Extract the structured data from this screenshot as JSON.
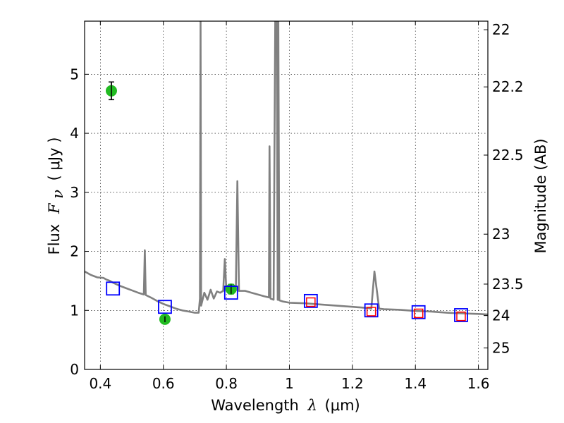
{
  "chart_data": {
    "type": "scatter",
    "xlabel": {
      "text": "Wavelength",
      "symbol": "λ",
      "unit": "(μm)"
    },
    "ylabel": {
      "text": "Flux",
      "symbol": "F",
      "subscript": "ν",
      "unit": "( μJy )"
    },
    "y2label": "Magnitude (AB)",
    "xlim": [
      0.35,
      1.63
    ],
    "ylim": [
      0,
      5.9
    ],
    "x_ticks": [
      0.4,
      0.6,
      0.8,
      1.0,
      1.2,
      1.4,
      1.6
    ],
    "x_tick_labels": [
      "0.4",
      "0.6",
      "0.8",
      "1",
      "1.2",
      "1.4",
      "1.6"
    ],
    "y_ticks": [
      0,
      1,
      2,
      3,
      4,
      5
    ],
    "y_tick_labels": [
      "0",
      "1",
      "2",
      "3",
      "4",
      "5"
    ],
    "y2_ticks": [
      22,
      22.2,
      22.5,
      23,
      23.5,
      24,
      25
    ],
    "y2_tick_labels": [
      "22",
      "22.2",
      "22.5",
      "23",
      "23.5",
      "24",
      "25"
    ],
    "grid": true,
    "colors": {
      "model_spectrum": "#808080",
      "observed": "#22bb22",
      "model_photometry": "#0000ff",
      "model_photometry_inner": "#ff0000",
      "error_bar": "#000000"
    },
    "series": [
      {
        "kind": "line",
        "points": [
          [
            0.35,
            1.66
          ],
          [
            0.37,
            1.6
          ],
          [
            0.39,
            1.56
          ],
          [
            0.41,
            1.55
          ],
          [
            0.42,
            1.52
          ],
          [
            0.43,
            1.5
          ],
          [
            0.44,
            1.47
          ],
          [
            0.46,
            1.42
          ],
          [
            0.48,
            1.38
          ],
          [
            0.5,
            1.34
          ],
          [
            0.52,
            1.3
          ],
          [
            0.538,
            1.27
          ],
          [
            0.541,
            2.02
          ],
          [
            0.544,
            1.26
          ],
          [
            0.56,
            1.22
          ],
          [
            0.58,
            1.16
          ],
          [
            0.6,
            1.11
          ],
          [
            0.62,
            1.07
          ],
          [
            0.64,
            1.03
          ],
          [
            0.66,
            1.0
          ],
          [
            0.68,
            0.98
          ],
          [
            0.7,
            0.96
          ],
          [
            0.712,
            0.96
          ],
          [
            0.716,
            1.2
          ],
          [
            0.718,
            5.9
          ],
          [
            0.72,
            1.08
          ],
          [
            0.73,
            1.3
          ],
          [
            0.74,
            1.18
          ],
          [
            0.75,
            1.35
          ],
          [
            0.76,
            1.2
          ],
          [
            0.77,
            1.32
          ],
          [
            0.78,
            1.3
          ],
          [
            0.79,
            1.33
          ],
          [
            0.795,
            1.87
          ],
          [
            0.8,
            1.34
          ],
          [
            0.82,
            1.35
          ],
          [
            0.83,
            1.34
          ],
          [
            0.835,
            3.19
          ],
          [
            0.84,
            1.33
          ],
          [
            0.86,
            1.33
          ],
          [
            0.88,
            1.3
          ],
          [
            0.9,
            1.27
          ],
          [
            0.92,
            1.24
          ],
          [
            0.935,
            1.22
          ],
          [
            0.937,
            3.78
          ],
          [
            0.94,
            1.2
          ],
          [
            0.95,
            1.18
          ],
          [
            0.955,
            5.9
          ],
          [
            0.96,
            5.9
          ],
          [
            0.963,
            1.18
          ],
          [
            0.965,
            5.9
          ],
          [
            0.968,
            1.17
          ],
          [
            0.98,
            1.15
          ],
          [
            1.0,
            1.13
          ],
          [
            1.05,
            1.12
          ],
          [
            1.1,
            1.1
          ],
          [
            1.15,
            1.08
          ],
          [
            1.2,
            1.06
          ],
          [
            1.25,
            1.04
          ],
          [
            1.26,
            1.03
          ],
          [
            1.27,
            1.66
          ],
          [
            1.285,
            1.03
          ],
          [
            1.3,
            1.02
          ],
          [
            1.35,
            1.01
          ],
          [
            1.4,
            0.99
          ],
          [
            1.45,
            0.98
          ],
          [
            1.5,
            0.96
          ],
          [
            1.55,
            0.95
          ],
          [
            1.6,
            0.94
          ],
          [
            1.63,
            0.93
          ]
        ]
      },
      {
        "kind": "markers-circle",
        "points": [
          {
            "x": 0.435,
            "y": 4.72,
            "yerr": 0.15
          },
          {
            "x": 0.605,
            "y": 0.85,
            "yerr": 0.05
          },
          {
            "x": 0.815,
            "y": 1.36,
            "yerr": 0.08
          }
        ]
      },
      {
        "kind": "markers-square-blue",
        "points": [
          {
            "x": 0.44,
            "y": 1.37
          },
          {
            "x": 0.605,
            "y": 1.06
          },
          {
            "x": 0.815,
            "y": 1.3
          },
          {
            "x": 1.068,
            "y": 1.16
          },
          {
            "x": 1.26,
            "y": 1.0
          },
          {
            "x": 1.41,
            "y": 0.97
          },
          {
            "x": 1.545,
            "y": 0.92
          }
        ]
      },
      {
        "kind": "markers-square-red",
        "points": [
          {
            "x": 1.068,
            "y": 1.14
          },
          {
            "x": 1.26,
            "y": 0.98
          },
          {
            "x": 1.41,
            "y": 0.95
          },
          {
            "x": 1.545,
            "y": 0.9
          }
        ]
      }
    ]
  }
}
